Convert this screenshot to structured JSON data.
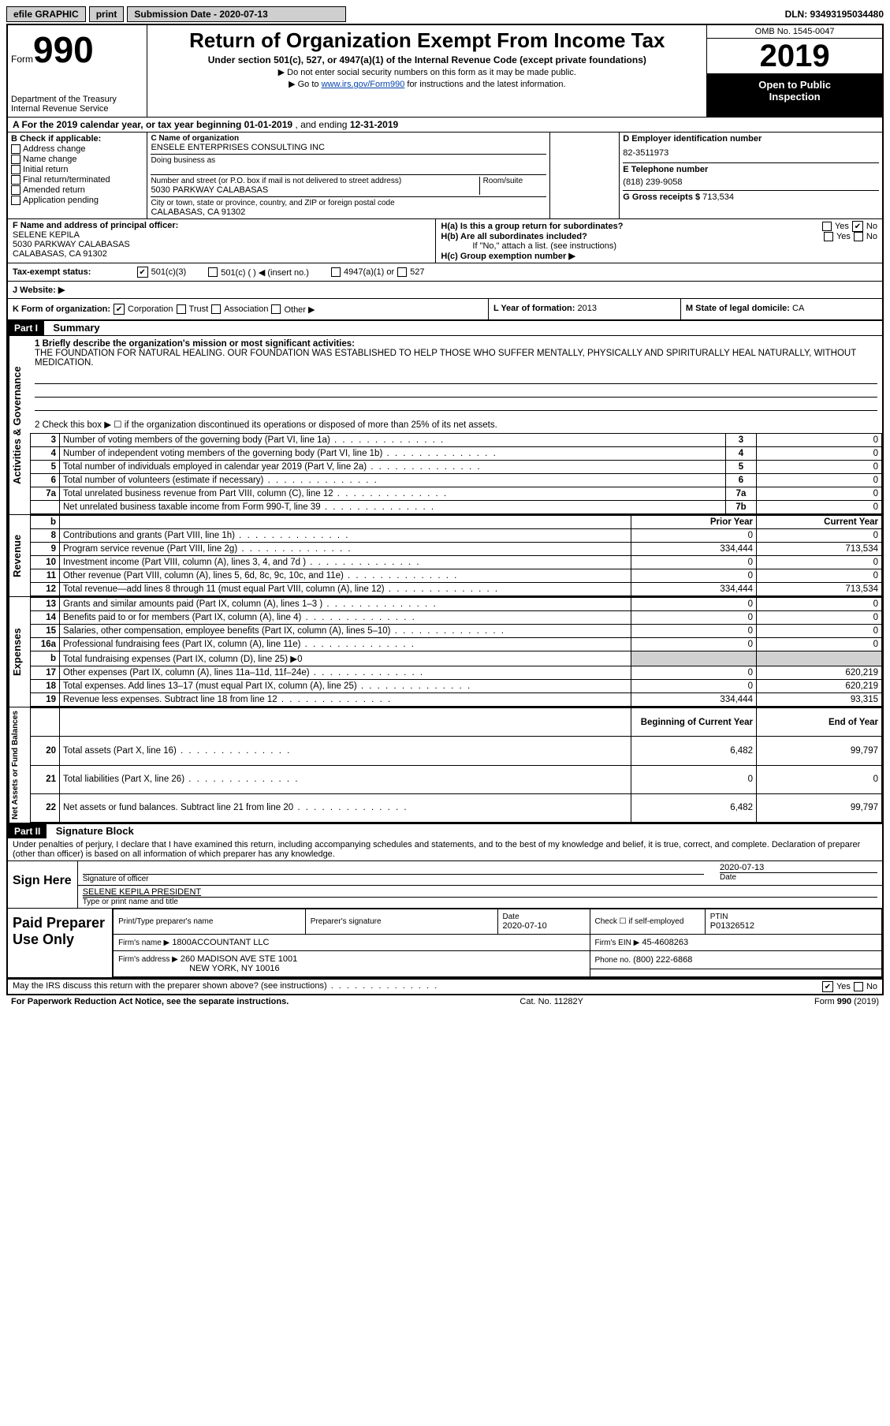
{
  "topbar": {
    "efile": "efile GRAPHIC",
    "print": "print",
    "sub_label": "Submission Date - 2020-07-13",
    "dln": "DLN: 93493195034480"
  },
  "header": {
    "form_word": "Form",
    "form_num": "990",
    "dept1": "Department of the Treasury",
    "dept2": "Internal Revenue Service",
    "title": "Return of Organization Exempt From Income Tax",
    "sub": "Under section 501(c), 527, or 4947(a)(1) of the Internal Revenue Code (except private foundations)",
    "inst1": "▶ Do not enter social security numbers on this form as it may be made public.",
    "inst2_pre": "▶ Go to ",
    "inst2_link": "www.irs.gov/Form990",
    "inst2_post": " for instructions and the latest information.",
    "omb": "OMB No. 1545-0047",
    "year": "2019",
    "open1": "Open to Public",
    "open2": "Inspection"
  },
  "sectionA": {
    "text_pre": "A For the 2019 calendar year, or tax year beginning ",
    "begin": "01-01-2019",
    "mid": " , and ending ",
    "end": "12-31-2019"
  },
  "colB": {
    "title": "B Check if applicable:",
    "opts": [
      "Address change",
      "Name change",
      "Initial return",
      "Final return/terminated",
      "Amended return",
      "Application pending"
    ]
  },
  "colC": {
    "name_label": "C Name of organization",
    "name": "ENSELE ENTERPRISES CONSULTING INC",
    "dba_label": "Doing business as",
    "addr_label": "Number and street (or P.O. box if mail is not delivered to street address)",
    "room_label": "Room/suite",
    "addr": "5030 PARKWAY CALABASAS",
    "city_label": "City or town, state or province, country, and ZIP or foreign postal code",
    "city": "CALABASAS, CA  91302"
  },
  "colD": {
    "label": "D Employer identification number",
    "ein": "82-3511973",
    "tel_label": "E Telephone number",
    "tel": "(818) 239-9058",
    "gross_label": "G Gross receipts $",
    "gross": "713,534"
  },
  "rowF": {
    "label": "F  Name and address of principal officer:",
    "name": "SELENE KEPILA",
    "addr1": "5030 PARKWAY CALABASAS",
    "addr2": "CALABASAS, CA  91302"
  },
  "rowH": {
    "ha": "H(a)  Is this a group return for subordinates?",
    "hb": "H(b)  Are all subordinates included?",
    "hb_note": "If \"No,\" attach a list. (see instructions)",
    "hc": "H(c)  Group exemption number ▶",
    "yes": "Yes",
    "no": "No"
  },
  "exempt": {
    "label": "Tax-exempt status:",
    "o1": "501(c)(3)",
    "o2": "501(c) (   ) ◀ (insert no.)",
    "o3": "4947(a)(1) or",
    "o4": "527"
  },
  "website": {
    "label": "J   Website: ▶"
  },
  "kRow": {
    "k": "K Form of organization:",
    "opts": [
      "Corporation",
      "Trust",
      "Association",
      "Other ▶"
    ],
    "l_label": "L Year of formation:",
    "l_val": "2013",
    "m_label": "M State of legal domicile:",
    "m_val": "CA"
  },
  "part1": {
    "hdr": "Part I",
    "title": "Summary",
    "line1_label": "1  Briefly describe the organization's mission or most significant activities:",
    "line1_text": "THE FOUNDATION FOR NATURAL HEALING. OUR FOUNDATION WAS ESTABLISHED TO HELP THOSE WHO SUFFER MENTALLY, PHYSICALLY AND SPIRITURALLY HEAL NATURALLY, WITHOUT MEDICATION.",
    "line2": "2    Check this box ▶ ☐ if the organization discontinued its operations or disposed of more than 25% of its net assets.",
    "rows_ag": [
      {
        "n": "3",
        "d": "Number of voting members of the governing body (Part VI, line 1a)",
        "box": "3",
        "v": "0"
      },
      {
        "n": "4",
        "d": "Number of independent voting members of the governing body (Part VI, line 1b)",
        "box": "4",
        "v": "0"
      },
      {
        "n": "5",
        "d": "Total number of individuals employed in calendar year 2019 (Part V, line 2a)",
        "box": "5",
        "v": "0"
      },
      {
        "n": "6",
        "d": "Total number of volunteers (estimate if necessary)",
        "box": "6",
        "v": "0"
      },
      {
        "n": "7a",
        "d": "Total unrelated business revenue from Part VIII, column (C), line 12",
        "box": "7a",
        "v": "0"
      },
      {
        "n": "",
        "d": "Net unrelated business taxable income from Form 990-T, line 39",
        "box": "7b",
        "v": "0"
      }
    ],
    "hdr_prior": "Prior Year",
    "hdr_current": "Current Year",
    "revenue": [
      {
        "n": "8",
        "d": "Contributions and grants (Part VIII, line 1h)",
        "p": "0",
        "c": "0"
      },
      {
        "n": "9",
        "d": "Program service revenue (Part VIII, line 2g)",
        "p": "334,444",
        "c": "713,534"
      },
      {
        "n": "10",
        "d": "Investment income (Part VIII, column (A), lines 3, 4, and 7d )",
        "p": "0",
        "c": "0"
      },
      {
        "n": "11",
        "d": "Other revenue (Part VIII, column (A), lines 5, 6d, 8c, 9c, 10c, and 11e)",
        "p": "0",
        "c": "0"
      },
      {
        "n": "12",
        "d": "Total revenue—add lines 8 through 11 (must equal Part VIII, column (A), line 12)",
        "p": "334,444",
        "c": "713,534"
      }
    ],
    "expenses": [
      {
        "n": "13",
        "d": "Grants and similar amounts paid (Part IX, column (A), lines 1–3 )",
        "p": "0",
        "c": "0"
      },
      {
        "n": "14",
        "d": "Benefits paid to or for members (Part IX, column (A), line 4)",
        "p": "0",
        "c": "0"
      },
      {
        "n": "15",
        "d": "Salaries, other compensation, employee benefits (Part IX, column (A), lines 5–10)",
        "p": "0",
        "c": "0"
      },
      {
        "n": "16a",
        "d": "Professional fundraising fees (Part IX, column (A), line 11e)",
        "p": "0",
        "c": "0"
      },
      {
        "n": "b",
        "d": "Total fundraising expenses (Part IX, column (D), line 25) ▶0",
        "p": "",
        "c": "",
        "shade": true
      },
      {
        "n": "17",
        "d": "Other expenses (Part IX, column (A), lines 11a–11d, 11f–24e)",
        "p": "0",
        "c": "620,219"
      },
      {
        "n": "18",
        "d": "Total expenses. Add lines 13–17 (must equal Part IX, column (A), line 25)",
        "p": "0",
        "c": "620,219"
      },
      {
        "n": "19",
        "d": "Revenue less expenses. Subtract line 18 from line 12",
        "p": "334,444",
        "c": "93,315"
      }
    ],
    "hdr_begin": "Beginning of Current Year",
    "hdr_end": "End of Year",
    "netassets": [
      {
        "n": "20",
        "d": "Total assets (Part X, line 16)",
        "p": "6,482",
        "c": "99,797"
      },
      {
        "n": "21",
        "d": "Total liabilities (Part X, line 26)",
        "p": "0",
        "c": "0"
      },
      {
        "n": "22",
        "d": "Net assets or fund balances. Subtract line 21 from line 20",
        "p": "6,482",
        "c": "99,797"
      }
    ],
    "side_ag": "Activities & Governance",
    "side_rev": "Revenue",
    "side_exp": "Expenses",
    "side_net": "Net Assets or Fund Balances"
  },
  "part2": {
    "hdr": "Part II",
    "title": "Signature Block",
    "decl": "Under penalties of perjury, I declare that I have examined this return, including accompanying schedules and statements, and to the best of my knowledge and belief, it is true, correct, and complete. Declaration of preparer (other than officer) is based on all information of which preparer has any knowledge."
  },
  "sign": {
    "left": "Sign Here",
    "sig_label": "Signature of officer",
    "date_label": "Date",
    "date": "2020-07-13",
    "name": "SELENE KEPILA  PRESIDENT",
    "name_label": "Type or print name and title"
  },
  "prep": {
    "left": "Paid Preparer Use Only",
    "h1": "Print/Type preparer's name",
    "h2": "Preparer's signature",
    "h3_label": "Date",
    "h3": "2020-07-10",
    "h4_label": "Check ☐ if self-employed",
    "h5_label": "PTIN",
    "h5": "P01326512",
    "firm_label": "Firm's name     ▶",
    "firm": "1800ACCOUNTANT LLC",
    "ein_label": "Firm's EIN ▶",
    "ein": "45-4608263",
    "addr_label": "Firm's address ▶",
    "addr1": "260 MADISON AVE STE 1001",
    "addr2": "NEW YORK, NY  10016",
    "phone_label": "Phone no.",
    "phone": "(800) 222-6868"
  },
  "footer": {
    "discuss": "May the IRS discuss this return with the preparer shown above? (see instructions)",
    "yes": "Yes",
    "no": "No",
    "paperwork": "For Paperwork Reduction Act Notice, see the separate instructions.",
    "cat": "Cat. No. 11282Y",
    "form": "Form 990 (2019)"
  }
}
